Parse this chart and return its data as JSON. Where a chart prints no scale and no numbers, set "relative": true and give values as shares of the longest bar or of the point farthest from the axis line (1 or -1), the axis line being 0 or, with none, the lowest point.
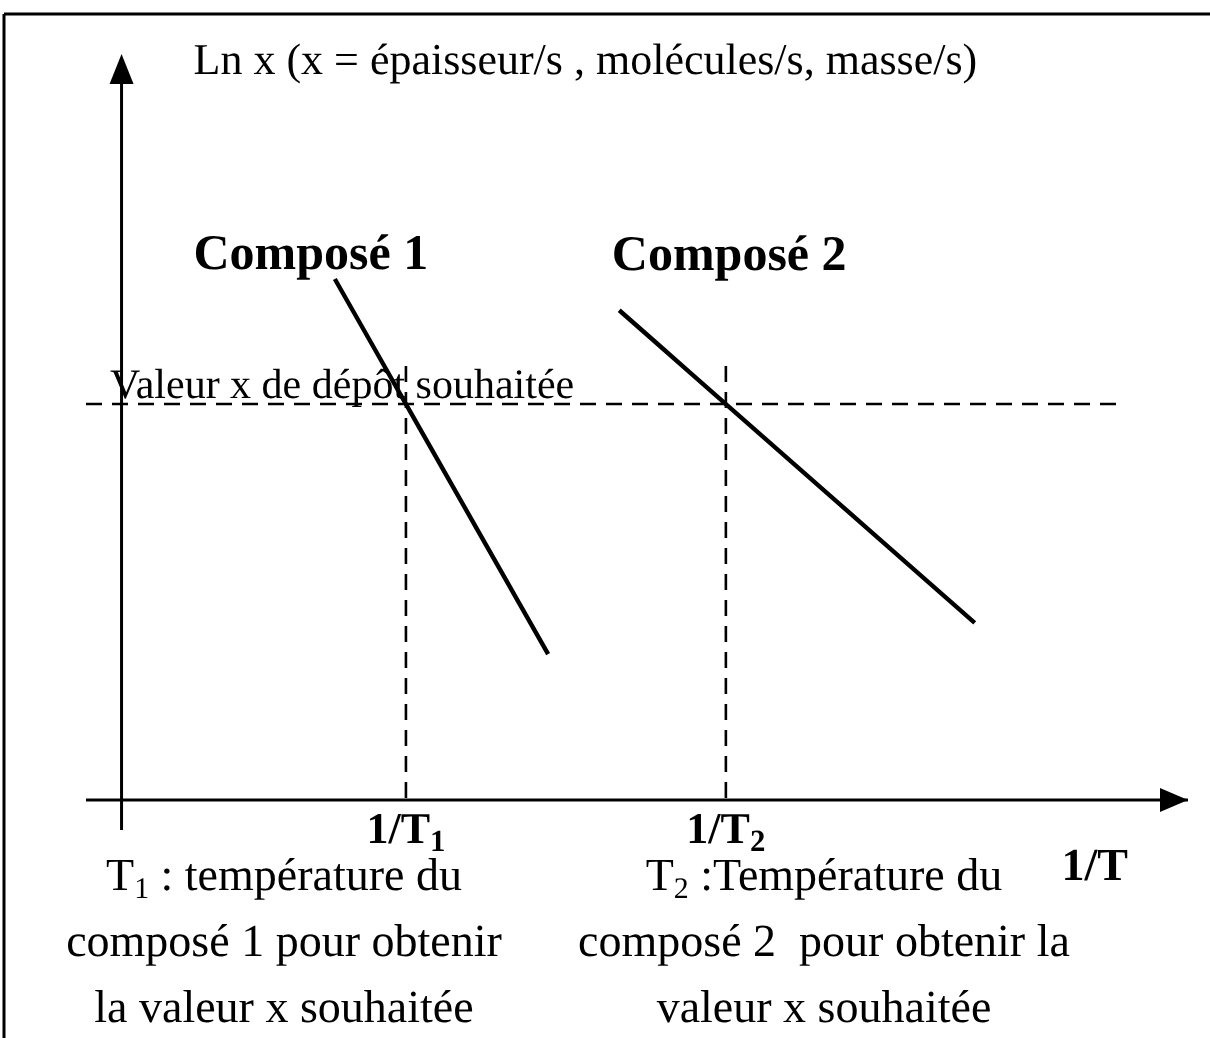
{
  "chart_data": {
    "type": "line",
    "relative": true,
    "ylabel": "Ln x (x = épaisseur/s , molécules/s, masse/s)",
    "xlabel": "1/T",
    "tick_labels": "x",
    "categories": [
      null,
      null,
      null,
      null,
      null,
      null,
      null,
      null,
      "1/T$_{1}$",
      null,
      null,
      null,
      null,
      null,
      null,
      null,
      null,
      "1/T$_{2}$",
      null,
      null,
      null,
      null,
      null,
      null,
      null,
      null,
      null,
      null,
      null,
      null
    ],
    "series": [
      {
        "name": "Composé 1",
        "color": "#000000",
        "values": [
          null,
          null,
          null,
          null,
          null,
          null,
          1,
          0.88,
          0.76,
          0.64,
          0.52,
          0.4,
          0.28,
          null,
          null,
          null,
          null,
          null,
          null,
          null,
          null,
          null,
          null,
          null,
          null,
          null,
          null,
          null,
          null,
          null
        ]
      },
      {
        "name": "Composé 2",
        "color": "#000000",
        "values": [
          null,
          null,
          null,
          null,
          null,
          null,
          null,
          null,
          null,
          null,
          null,
          null,
          null,
          null,
          0.94,
          0.88,
          0.82,
          0.76,
          0.7,
          0.64,
          0.58,
          0.52,
          0.46,
          0.4,
          0.34,
          null,
          null,
          null,
          null,
          null
        ]
      }
    ],
    "ref_lines": [
      {
        "axis": "y",
        "value": 0.76,
        "label": "Valeur x de dépôt souhaitée",
        "line_style": "dashed"
      },
      {
        "axis": "x",
        "value": "1/T$_{1}$",
        "line_style": "dashed"
      },
      {
        "axis": "x",
        "value": "1/T$_{2}$",
        "line_style": "dashed"
      }
    ],
    "annotations": [
      "T$_{1}$ : température du\ncomposé 1 pour obtenir\nla valeur x souhaitée",
      "T$_{2}$ :Température du\ncomposé 2  pour obtenir la\nvaleur x souhaitée"
    ]
  }
}
